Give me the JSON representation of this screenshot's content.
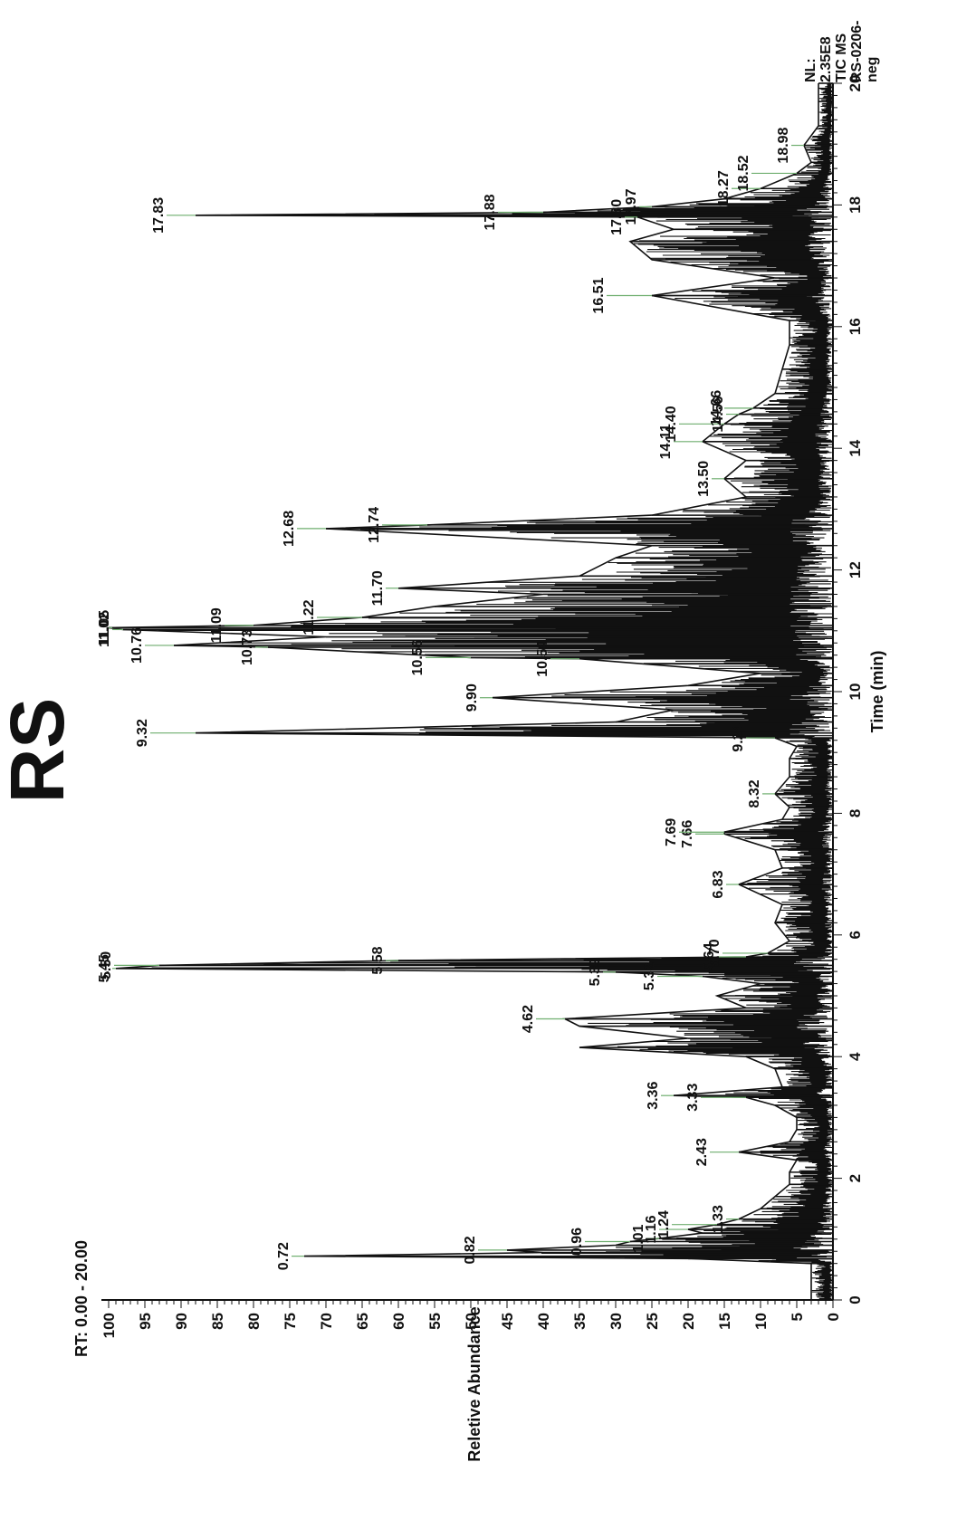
{
  "chart_data": {
    "type": "line",
    "title": "RS",
    "range_label": "RT: 0.00 - 20.00",
    "info": [
      "NL:",
      "2.35E8",
      "TIC MS",
      "RS-0206-",
      "neg"
    ],
    "xlabel": "Time (min)",
    "ylabel": "Reletive Abundance",
    "xlim": [
      0,
      20
    ],
    "ylim": [
      0,
      100
    ],
    "x_ticks": [
      "0",
      "2",
      "4",
      "6",
      "8",
      "10",
      "12",
      "14",
      "16",
      "18",
      "20"
    ],
    "y_ticks": [
      "0",
      "5",
      "10",
      "15",
      "20",
      "25",
      "30",
      "35",
      "40",
      "45",
      "50",
      "55",
      "60",
      "65",
      "70",
      "75",
      "80",
      "85",
      "90",
      "95",
      "100"
    ],
    "grid": false,
    "series": [
      {
        "x": [
          0,
          0.6,
          0.68,
          0.72,
          0.78,
          0.82,
          0.9,
          0.96,
          1.01,
          1.1,
          1.16,
          1.24,
          1.33,
          1.5,
          1.7,
          1.9,
          2.1,
          2.3,
          2.43,
          2.6,
          2.8,
          3.0,
          3.2,
          3.33,
          3.36,
          3.5,
          3.8,
          4.0,
          4.15,
          4.3,
          4.5,
          4.62,
          4.8,
          5.0,
          5.2,
          5.32,
          5.39,
          5.45,
          5.5,
          5.58,
          5.64,
          5.7,
          5.9,
          6.2,
          6.5,
          6.83,
          7.1,
          7.4,
          7.66,
          7.69,
          7.9,
          8.1,
          8.32,
          8.6,
          8.9,
          9.1,
          9.24,
          9.32,
          9.5,
          9.7,
          9.9,
          10.1,
          10.3,
          10.54,
          10.56,
          10.73,
          10.76,
          10.9,
          11.02,
          11.05,
          11.09,
          11.22,
          11.4,
          11.6,
          11.7,
          11.9,
          12.2,
          12.4,
          12.68,
          12.74,
          12.9,
          13.2,
          13.5,
          13.8,
          14.11,
          14.4,
          14.56,
          14.66,
          14.9,
          15.3,
          15.7,
          16.1,
          16.51,
          16.8,
          17.1,
          17.4,
          17.6,
          17.8,
          17.83,
          17.88,
          17.97,
          18.1,
          18.27,
          18.52,
          18.7,
          18.98,
          19.3,
          19.7,
          20
        ],
        "y": [
          3,
          3,
          20,
          73,
          40,
          45,
          30,
          28,
          24,
          18,
          20,
          16,
          13,
          10,
          8,
          6,
          6,
          5,
          13,
          6,
          5,
          5,
          8,
          12,
          22,
          7,
          8,
          12,
          35,
          20,
          35,
          37,
          12,
          16,
          10,
          18,
          30,
          99,
          93,
          60,
          12,
          9,
          6,
          8,
          7,
          13,
          7,
          8,
          15,
          15,
          7,
          6,
          8,
          6,
          6,
          5,
          8,
          88,
          30,
          22,
          47,
          20,
          10,
          35,
          50,
          78,
          91,
          70,
          98,
          100,
          80,
          65,
          55,
          40,
          60,
          35,
          30,
          25,
          70,
          56,
          25,
          12,
          15,
          12,
          18,
          15,
          13,
          11,
          8,
          7,
          6,
          6,
          25,
          8,
          25,
          28,
          22,
          27,
          88,
          40,
          25,
          15,
          10,
          5,
          3,
          4,
          2,
          2,
          2
        ]
      }
    ],
    "peak_labels": [
      {
        "t": 0.72,
        "text": "0.72"
      },
      {
        "t": 0.82,
        "text": "0.82"
      },
      {
        "t": 0.96,
        "text": "0.96"
      },
      {
        "t": 1.01,
        "text": "1.01"
      },
      {
        "t": 1.16,
        "text": "1.16"
      },
      {
        "t": 1.24,
        "text": "1.24"
      },
      {
        "t": 1.33,
        "text": "1.33"
      },
      {
        "t": 2.43,
        "text": "2.43"
      },
      {
        "t": 3.33,
        "text": "3.33"
      },
      {
        "t": 3.36,
        "text": "3.36"
      },
      {
        "t": 4.62,
        "text": "4.62"
      },
      {
        "t": 5.32,
        "text": "5.32"
      },
      {
        "t": 5.39,
        "text": "5.39"
      },
      {
        "t": 5.45,
        "text": "5.45"
      },
      {
        "t": 5.5,
        "text": "5.50"
      },
      {
        "t": 5.58,
        "text": "5.58"
      },
      {
        "t": 5.64,
        "text": "5.64"
      },
      {
        "t": 5.7,
        "text": "5.70"
      },
      {
        "t": 6.83,
        "text": "6.83"
      },
      {
        "t": 7.66,
        "text": "7.66"
      },
      {
        "t": 7.69,
        "text": "7.69"
      },
      {
        "t": 8.32,
        "text": "8.32"
      },
      {
        "t": 9.24,
        "text": "9.24"
      },
      {
        "t": 9.32,
        "text": "9.32"
      },
      {
        "t": 9.9,
        "text": "9.90"
      },
      {
        "t": 10.54,
        "text": "10.54"
      },
      {
        "t": 10.56,
        "text": "10.56"
      },
      {
        "t": 10.73,
        "text": "10.73"
      },
      {
        "t": 10.76,
        "text": "10.76"
      },
      {
        "t": 11.02,
        "text": "11.02"
      },
      {
        "t": 11.05,
        "text": "11.05"
      },
      {
        "t": 11.09,
        "text": "11.09"
      },
      {
        "t": 11.22,
        "text": "11.22"
      },
      {
        "t": 11.7,
        "text": "11.70"
      },
      {
        "t": 12.68,
        "text": "12.68"
      },
      {
        "t": 12.74,
        "text": "12.74"
      },
      {
        "t": 13.5,
        "text": "13.50"
      },
      {
        "t": 14.11,
        "text": "14.11"
      },
      {
        "t": 14.4,
        "text": "14.40"
      },
      {
        "t": 14.56,
        "text": "14.56"
      },
      {
        "t": 14.66,
        "text": "14.66"
      },
      {
        "t": 16.51,
        "text": "16.51"
      },
      {
        "t": 17.8,
        "text": "17.80"
      },
      {
        "t": 17.83,
        "text": "17.83"
      },
      {
        "t": 17.88,
        "text": "17.88"
      },
      {
        "t": 17.97,
        "text": "17.97"
      },
      {
        "t": 18.27,
        "text": "18.27"
      },
      {
        "t": 18.52,
        "text": "18.52"
      },
      {
        "t": 18.98,
        "text": "18.98"
      }
    ],
    "colors": {
      "trace": "#111111",
      "label_leader": "#6fae6f"
    }
  }
}
